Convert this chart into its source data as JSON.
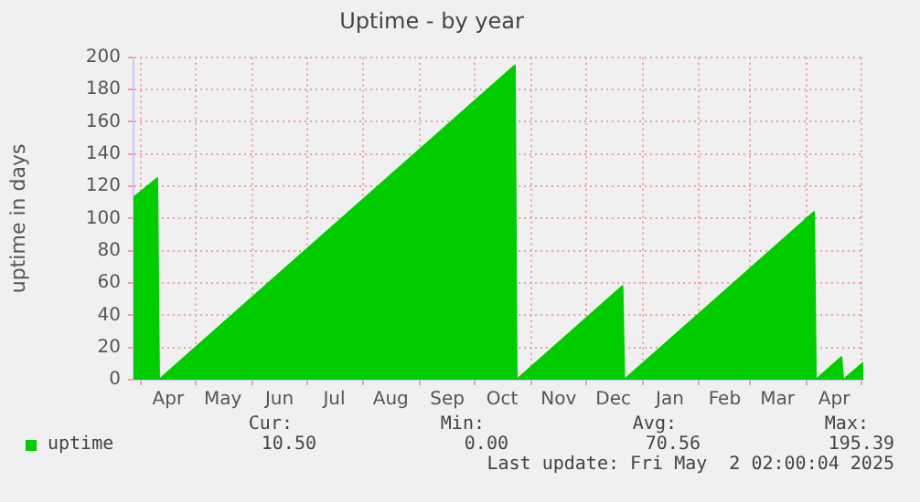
{
  "chart_data": {
    "type": "area",
    "title": "Uptime - by year",
    "ylabel": "uptime in days",
    "x": [
      "2024-03-28",
      "2024-04-10",
      "2024-04-11",
      "2024-10-23",
      "2024-10-24",
      "2024-12-21",
      "2024-12-22",
      "2025-04-05",
      "2025-04-06",
      "2025-04-20",
      "2025-04-21",
      "2025-05-02"
    ],
    "series": [
      {
        "name": "uptime",
        "color": "#00cc00",
        "values": [
          113,
          125,
          0,
          195,
          0,
          58,
          0,
          104,
          0,
          14,
          0,
          10.5
        ]
      }
    ],
    "xlim": [
      "2024-03-28",
      "2025-05-02"
    ],
    "xticks": [
      {
        "value": "2024-04-01",
        "label": null
      },
      {
        "value": "2024-04-16",
        "label": "Apr"
      },
      {
        "value": "2024-05-01",
        "label": null
      },
      {
        "value": "2024-05-16",
        "label": "May"
      },
      {
        "value": "2024-06-01",
        "label": null
      },
      {
        "value": "2024-06-16",
        "label": "Jun"
      },
      {
        "value": "2024-07-01",
        "label": null
      },
      {
        "value": "2024-07-16",
        "label": "Jul"
      },
      {
        "value": "2024-08-01",
        "label": null
      },
      {
        "value": "2024-08-16",
        "label": "Aug"
      },
      {
        "value": "2024-09-01",
        "label": null
      },
      {
        "value": "2024-09-16",
        "label": "Sep"
      },
      {
        "value": "2024-10-01",
        "label": null
      },
      {
        "value": "2024-10-16",
        "label": "Oct"
      },
      {
        "value": "2024-11-01",
        "label": null
      },
      {
        "value": "2024-11-16",
        "label": "Nov"
      },
      {
        "value": "2024-12-01",
        "label": null
      },
      {
        "value": "2024-12-16",
        "label": "Dec"
      },
      {
        "value": "2025-01-01",
        "label": null
      },
      {
        "value": "2025-01-16",
        "label": "Jan"
      },
      {
        "value": "2025-02-01",
        "label": null
      },
      {
        "value": "2025-02-15",
        "label": "Feb"
      },
      {
        "value": "2025-03-01",
        "label": null
      },
      {
        "value": "2025-03-16",
        "label": "Mar"
      },
      {
        "value": "2025-04-01",
        "label": null
      },
      {
        "value": "2025-04-16",
        "label": "Apr"
      },
      {
        "value": "2025-05-01",
        "label": null
      }
    ],
    "ylim": [
      0,
      200
    ],
    "yticks": [
      0,
      20,
      40,
      60,
      80,
      100,
      120,
      140,
      160,
      180,
      200
    ],
    "grid": true,
    "legend": "bottom left",
    "annotations": [
      "Cur:",
      "10.50",
      "Min:",
      "0.00",
      "Avg:",
      "70.56",
      "Max:",
      "195.39",
      "Last update: Fri May  2 02:00:04 2025"
    ]
  }
}
